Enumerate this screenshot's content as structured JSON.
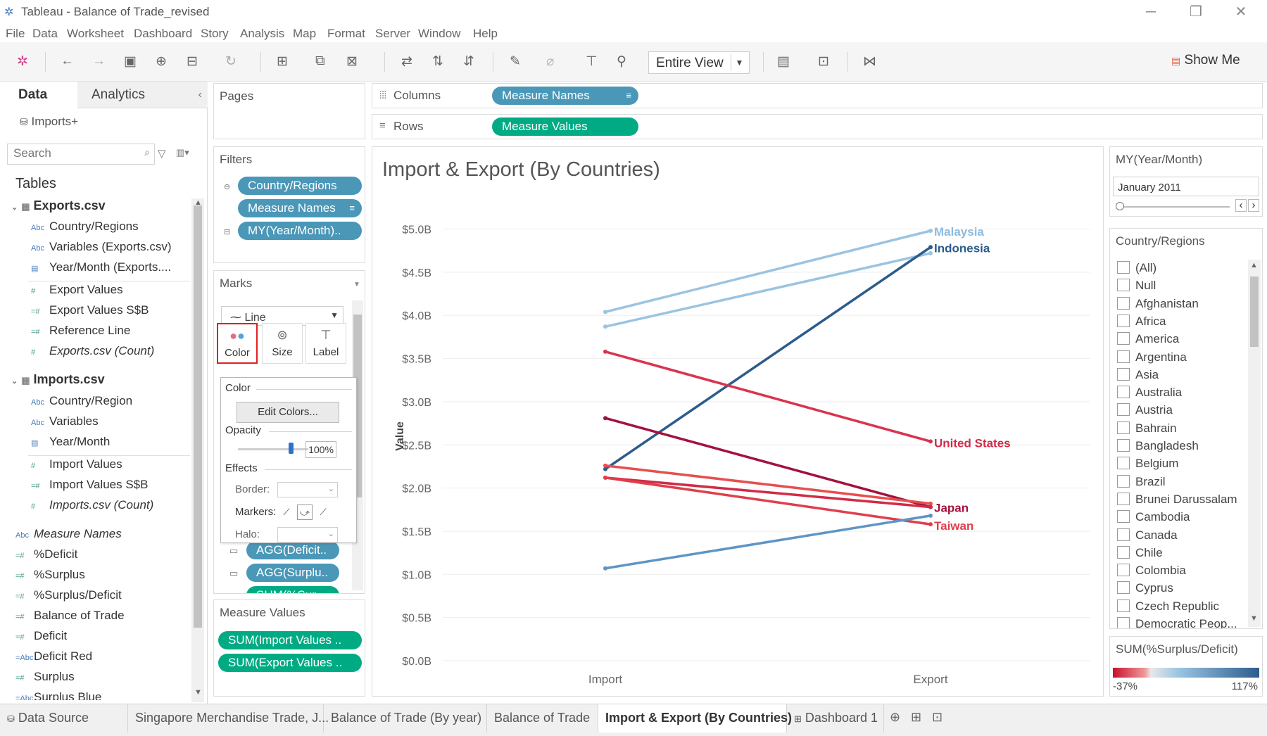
{
  "window": {
    "title": "Tableau - Balance of Trade_revised",
    "menu": [
      "File",
      "Data",
      "Worksheet",
      "Dashboard",
      "Story",
      "Analysis",
      "Map",
      "Format",
      "Server",
      "Window",
      "Help"
    ]
  },
  "toolbar": {
    "fit": "Entire View",
    "show_me": "Show Me"
  },
  "data_pane": {
    "tab_data": "Data",
    "tab_analytics": "Analytics",
    "datasource": "Imports+",
    "search_placeholder": "Search",
    "tables_label": "Tables",
    "exports_table": "Exports.csv",
    "exports_fields": [
      "Country/Regions",
      "Variables (Exports.csv)",
      "Year/Month (Exports....",
      "Export Values",
      "Export Values S$B",
      "Reference Line",
      "Exports.csv (Count)"
    ],
    "imports_table": "Imports.csv",
    "imports_fields": [
      "Country/Region",
      "Variables",
      "Year/Month",
      "Import Values",
      "Import Values S$B",
      "Imports.csv (Count)"
    ],
    "extra_fields": [
      "Measure Names",
      "%Deficit",
      "%Surplus",
      "%Surplus/Deficit",
      "Balance of Trade",
      "Deficit",
      "Deficit Red",
      "Surplus",
      "Surplus Blue"
    ]
  },
  "shelves": {
    "pages": "Pages",
    "filters": "Filters",
    "filter_pills": [
      "Country/Regions",
      "Measure Names",
      "MY(Year/Month).."
    ],
    "marks": "Marks",
    "mark_type": "Line",
    "mark_buttons": [
      "Color",
      "Size",
      "Label"
    ],
    "mark_pills": [
      "AGG(Deficit..",
      "AGG(Surplu..",
      "SUM(%Sur.."
    ],
    "measure_values": "Measure Values",
    "measure_pills": [
      "SUM(Import Values ..",
      "SUM(Export Values .."
    ],
    "columns": "Columns",
    "rows": "Rows",
    "columns_pill": "Measure Names",
    "rows_pill": "Measure Values"
  },
  "color_popup": {
    "color": "Color",
    "edit": "Edit Colors...",
    "opacity": "Opacity",
    "opacity_value": "100%",
    "effects": "Effects",
    "border": "Border:",
    "markers": "Markers:",
    "halo": "Halo:"
  },
  "view": {
    "title": "Import & Export (By Countries)"
  },
  "chart_data": {
    "type": "line",
    "title": "Import & Export (By Countries)",
    "ylabel": "Value",
    "categories": [
      "Import",
      "Export"
    ],
    "ylim": [
      0,
      5.2
    ],
    "yticks": [
      "$0.0B",
      "$0.5B",
      "$1.0B",
      "$1.5B",
      "$2.0B",
      "$2.5B",
      "$3.0B",
      "$3.5B",
      "$4.0B",
      "$4.5B",
      "$5.0B"
    ],
    "series": [
      {
        "name": "Malaysia",
        "values": [
          4.04,
          4.98
        ],
        "color": "#9ac4e2",
        "label": true
      },
      {
        "name": "",
        "values": [
          3.87,
          4.72
        ],
        "color": "#9ac4e2",
        "label": false
      },
      {
        "name": "Indonesia",
        "values": [
          2.22,
          4.79
        ],
        "color": "#2b5c8c",
        "label": true
      },
      {
        "name": "United States",
        "values": [
          3.58,
          2.54
        ],
        "color": "#d9344e",
        "label": true
      },
      {
        "name": "",
        "values": [
          2.81,
          1.78
        ],
        "color": "#a3123e",
        "label": false
      },
      {
        "name": "",
        "values": [
          2.26,
          1.82
        ],
        "color": "#e64f4f",
        "label": false
      },
      {
        "name": "Japan",
        "values": [
          2.12,
          1.78
        ],
        "color": "#d12b47",
        "label": true
      },
      {
        "name": "Taiwan",
        "values": [
          2.12,
          1.58
        ],
        "color": "#e03e4c",
        "label": true
      },
      {
        "name": "",
        "values": [
          1.07,
          1.68
        ],
        "color": "#5e95c5",
        "label": false
      }
    ],
    "label_colors": {
      "Malaysia": "#8cbbe0",
      "Indonesia": "#2b5c8c",
      "United States": "#d12b47",
      "Japan": "#a3123e",
      "Taiwan": "#e03e4c"
    }
  },
  "right_panel": {
    "date_filter_title": "MY(Year/Month)",
    "date_value": "January 2011",
    "country_filter_title": "Country/Regions",
    "countries": [
      "(All)",
      "Null",
      "Afghanistan",
      "Africa",
      "America",
      "Argentina",
      "Asia",
      "Australia",
      "Austria",
      "Bahrain",
      "Bangladesh",
      "Belgium",
      "Brazil",
      "Brunei Darussalam",
      "Cambodia",
      "Canada",
      "Chile",
      "Colombia",
      "Cyprus",
      "Czech Republic",
      "Democratic Peop..."
    ],
    "legend_title": "SUM(%Surplus/Deficit)",
    "legend_min": "-37%",
    "legend_max": "117%"
  },
  "sheet_tabs": [
    "Data Source",
    "Singapore Merchandise Trade, J...",
    "Balance of Trade (By year)",
    "Balance of Trade",
    "Import & Export (By Countries)",
    "Dashboard 1"
  ],
  "active_tab": "Import & Export (By Countries)"
}
